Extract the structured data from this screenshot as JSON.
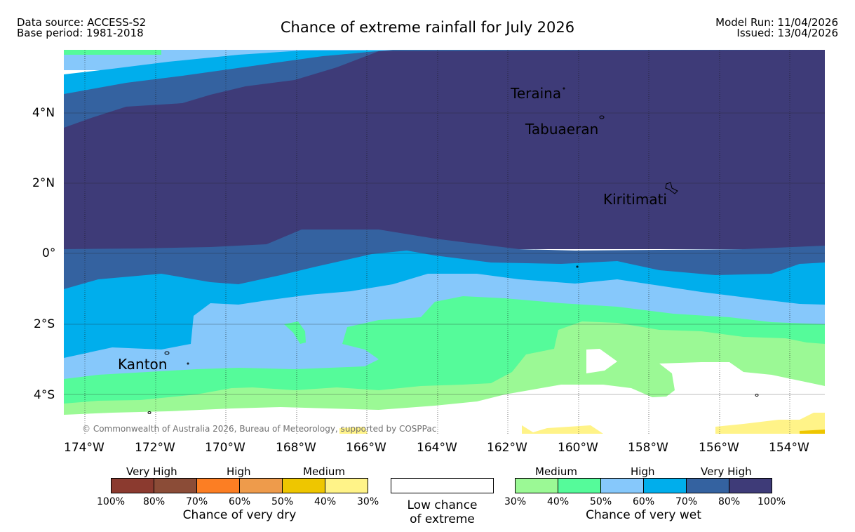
{
  "header": {
    "source": "Data source: ACCESS-S2",
    "base": "Base period: 1981-2018",
    "title": "Chance of extreme rainfall for July 2026",
    "model_run": "Model Run: 11/04/2026",
    "issued": "Issued: 13/04/2026"
  },
  "map": {
    "lat_labels": [
      "4°N",
      "2°N",
      "0°",
      "2°S",
      "4°S"
    ],
    "lon_labels": [
      "174°W",
      "172°W",
      "170°W",
      "168°W",
      "166°W",
      "164°W",
      "162°W",
      "160°W",
      "158°W",
      "156°W",
      "154°W"
    ],
    "places": [
      "Teraina",
      "Tabuaeran",
      "Kiritimati",
      "Kanton"
    ],
    "credit": "© Commonwealth of Australia 2026, Bureau of Meteorology, supported by COSPPac"
  },
  "legend": {
    "dry": {
      "levels": [
        "Very High",
        "High",
        "Medium"
      ],
      "ticks": [
        "100%",
        "80%",
        "70%",
        "60%",
        "50%",
        "40%",
        "30%"
      ],
      "caption": "Chance of very dry",
      "colors": [
        "#8b3a2f",
        "#8b4c37",
        "#fc7e23",
        "#ee9b4b",
        "#eec600",
        "#fff388"
      ]
    },
    "neutral": {
      "line1": "Low chance",
      "line2": "of extreme"
    },
    "wet": {
      "levels": [
        "Medium",
        "High",
        "Very High"
      ],
      "ticks": [
        "30%",
        "40%",
        "50%",
        "60%",
        "70%",
        "80%",
        "100%"
      ],
      "caption": "Chance of very wet",
      "colors": [
        "#9bf995",
        "#55fb9a",
        "#86c8fb",
        "#00aeec",
        "#3462a0",
        "#3e3b78"
      ]
    }
  }
}
